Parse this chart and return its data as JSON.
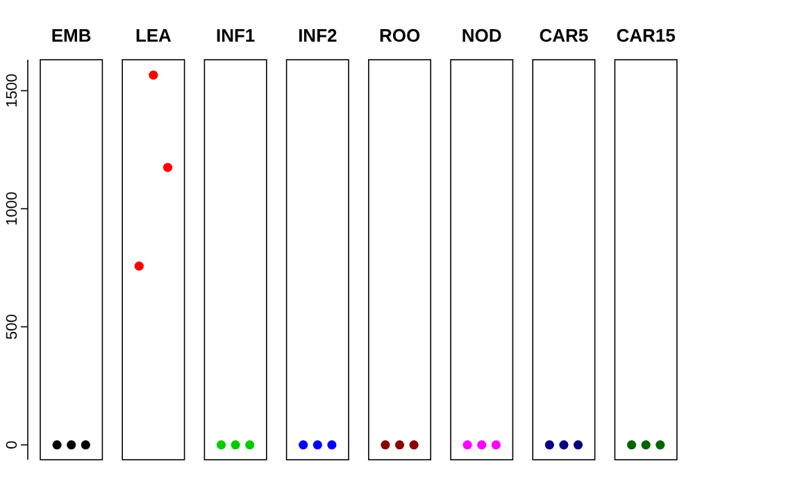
{
  "chart_data": {
    "type": "scatter",
    "categories": [
      "EMB",
      "LEA",
      "INF1",
      "INF2",
      "ROO",
      "NOD",
      "CAR5",
      "CAR15"
    ],
    "series": [
      {
        "colors": [
          "#000000",
          "#ff0000",
          "#00cd00",
          "#0000ff",
          "#8b0000",
          "#ff00ff",
          "#000080",
          "#006400"
        ],
        "values": [
          0,
          757,
          0,
          0,
          0,
          0,
          0,
          0
        ]
      },
      {
        "colors": [
          "#000000",
          "#ff0000",
          "#00cd00",
          "#0000ff",
          "#8b0000",
          "#ff00ff",
          "#000080",
          "#006400"
        ],
        "values": [
          0,
          1566,
          0,
          0,
          0,
          0,
          0,
          0
        ]
      },
      {
        "colors": [
          "#000000",
          "#ff0000",
          "#00cd00",
          "#0000ff",
          "#8b0000",
          "#ff00ff",
          "#000080",
          "#006400"
        ],
        "values": [
          0,
          1175,
          0,
          0,
          0,
          0,
          0,
          0
        ]
      }
    ],
    "marker": "circle",
    "ylim": [
      -63,
      1631
    ],
    "yticks": [
      0,
      500,
      1000,
      1500
    ],
    "grid": false
  }
}
